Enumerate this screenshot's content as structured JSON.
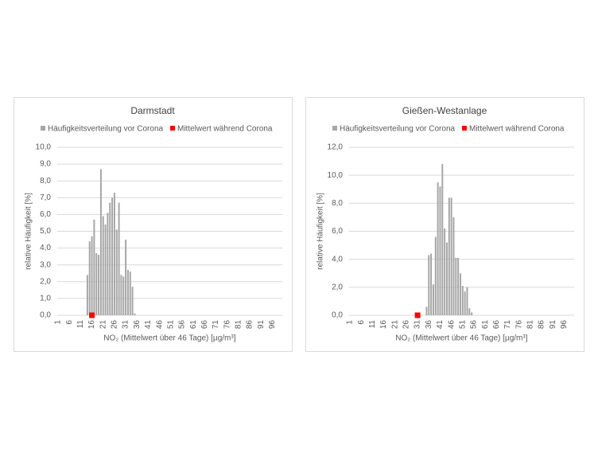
{
  "chart_data": [
    {
      "type": "bar",
      "title": "Darmstadt",
      "x_label": "NO₂ (Mittelwert über 46 Tage) [µg/m³]",
      "y_label": "relative Häufigkeit [%]",
      "categories": [
        "1",
        null,
        null,
        null,
        null,
        "6",
        null,
        null,
        null,
        null,
        "11",
        null,
        null,
        null,
        null,
        "16",
        null,
        null,
        null,
        null,
        "21",
        null,
        null,
        null,
        null,
        "26",
        null,
        null,
        null,
        null,
        "31",
        null,
        null,
        null,
        null,
        "36",
        null,
        null,
        null,
        null,
        "41",
        null,
        null,
        null,
        null,
        "46",
        null,
        null,
        null,
        null,
        "51",
        null,
        null,
        null,
        null,
        "56",
        null,
        null,
        null,
        null,
        "61",
        null,
        null,
        null,
        null,
        "66",
        null,
        null,
        null,
        null,
        "71",
        null,
        null,
        null,
        null,
        "76",
        null,
        null,
        null,
        null,
        "81",
        null,
        null,
        null,
        null,
        "86",
        null,
        null,
        null,
        null,
        "91",
        null,
        null,
        null,
        null,
        "96",
        null,
        null,
        null,
        null
      ],
      "series": [
        {
          "name": "Häufigkeitsverteilung vor Corona",
          "color": "#a6a6a6",
          "values": [
            0,
            0,
            0,
            0,
            0,
            0,
            0,
            0,
            0,
            0,
            0,
            0,
            0,
            2.4,
            4.4,
            4.7,
            5.7,
            3.7,
            3.6,
            8.7,
            5.9,
            5.4,
            6.1,
            6.7,
            7.0,
            7.3,
            5.1,
            6.7,
            2.4,
            2.3,
            4.5,
            2.7,
            2.6,
            1.7,
            0.1,
            0,
            0,
            0,
            0,
            0,
            0,
            0,
            0,
            0,
            0,
            0,
            0,
            0,
            0,
            0,
            0,
            0,
            0,
            0,
            0,
            0,
            0,
            0,
            0,
            0,
            0,
            0,
            0,
            0,
            0,
            0,
            0,
            0,
            0,
            0,
            0,
            0,
            0,
            0,
            0,
            0,
            0,
            0,
            0,
            0,
            0,
            0,
            0,
            0,
            0,
            0,
            0,
            0,
            0,
            0,
            0,
            0,
            0,
            0,
            0,
            0,
            0,
            0,
            0,
            0
          ]
        },
        {
          "name": "Mittelwert während Corona",
          "color": "#ff0000",
          "marker": "square",
          "values": [
            null,
            null,
            null,
            null,
            null,
            null,
            null,
            null,
            null,
            null,
            null,
            null,
            null,
            null,
            null,
            0,
            null,
            null,
            null,
            null,
            null,
            null,
            null,
            null,
            null,
            null,
            null,
            null,
            null,
            null,
            null,
            null,
            null,
            null,
            null,
            null,
            null,
            null,
            null,
            null,
            null,
            null,
            null,
            null,
            null,
            null,
            null,
            null,
            null,
            null,
            null,
            null,
            null,
            null,
            null,
            null,
            null,
            null,
            null,
            null,
            null,
            null,
            null,
            null,
            null,
            null,
            null,
            null,
            null,
            null,
            null,
            null,
            null,
            null,
            null,
            null,
            null,
            null,
            null,
            null,
            null,
            null,
            null,
            null,
            null,
            null,
            null,
            null,
            null,
            null,
            null,
            null,
            null,
            null,
            null,
            null,
            null,
            null,
            null,
            null
          ]
        }
      ],
      "ylim": [
        0,
        10
      ],
      "yticks": [
        {
          "value": 0,
          "label": "0,0"
        },
        {
          "value": 1,
          "label": "1,0"
        },
        {
          "value": 2,
          "label": "2,0"
        },
        {
          "value": 3,
          "label": "3,0"
        },
        {
          "value": 4,
          "label": "4,0"
        },
        {
          "value": 5,
          "label": "5,0"
        },
        {
          "value": 6,
          "label": "6,0"
        },
        {
          "value": 7,
          "label": "7,0"
        },
        {
          "value": 8,
          "label": "8,0"
        },
        {
          "value": 9,
          "label": "9,0"
        },
        {
          "value": 10,
          "label": "10,0"
        }
      ],
      "grid": true,
      "legend": "top"
    },
    {
      "type": "bar",
      "title": "Gießen-Westanlage",
      "x_label": "NO₂ (Mittelwert über 46 Tage) [µg/m³]",
      "y_label": "relative Häufigkeit [%]",
      "categories": [
        "1",
        null,
        null,
        null,
        null,
        "6",
        null,
        null,
        null,
        null,
        "11",
        null,
        null,
        null,
        null,
        "16",
        null,
        null,
        null,
        null,
        "21",
        null,
        null,
        null,
        null,
        "26",
        null,
        null,
        null,
        null,
        "31",
        null,
        null,
        null,
        null,
        "36",
        null,
        null,
        null,
        null,
        "41",
        null,
        null,
        null,
        null,
        "46",
        null,
        null,
        null,
        null,
        "51",
        null,
        null,
        null,
        null,
        "56",
        null,
        null,
        null,
        null,
        "61",
        null,
        null,
        null,
        null,
        "66",
        null,
        null,
        null,
        null,
        "71",
        null,
        null,
        null,
        null,
        "76",
        null,
        null,
        null,
        null,
        "81",
        null,
        null,
        null,
        null,
        "86",
        null,
        null,
        null,
        null,
        "91",
        null,
        null,
        null,
        null,
        "96",
        null,
        null,
        null,
        null
      ],
      "series": [
        {
          "name": "Häufigkeitsverteilung vor Corona",
          "color": "#a6a6a6",
          "values": [
            0,
            0,
            0,
            0,
            0,
            0,
            0,
            0,
            0,
            0,
            0,
            0,
            0,
            0,
            0,
            0,
            0,
            0,
            0,
            0,
            0,
            0,
            0,
            0,
            0,
            0,
            0,
            0,
            0,
            0,
            0,
            0,
            0,
            0,
            0.6,
            4.3,
            4.4,
            2.2,
            5.6,
            9.5,
            9.2,
            10.8,
            6.2,
            5.2,
            8.4,
            8.4,
            7.0,
            4.1,
            4.1,
            3.0,
            2.1,
            1.7,
            2.0,
            0.5,
            0.2,
            0,
            0,
            0,
            0,
            0,
            0,
            0,
            0,
            0,
            0,
            0,
            0,
            0,
            0,
            0,
            0,
            0,
            0,
            0,
            0,
            0,
            0,
            0,
            0,
            0,
            0,
            0,
            0,
            0,
            0,
            0,
            0,
            0,
            0,
            0,
            0,
            0,
            0,
            0,
            0,
            0,
            0,
            0,
            0,
            0
          ]
        },
        {
          "name": "Mittelwert während Corona",
          "color": "#ff0000",
          "marker": "square",
          "values": [
            null,
            null,
            null,
            null,
            null,
            null,
            null,
            null,
            null,
            null,
            null,
            null,
            null,
            null,
            null,
            null,
            null,
            null,
            null,
            null,
            null,
            null,
            null,
            null,
            null,
            null,
            null,
            null,
            null,
            null,
            0,
            null,
            null,
            null,
            null,
            null,
            null,
            null,
            null,
            null,
            null,
            null,
            null,
            null,
            null,
            null,
            null,
            null,
            null,
            null,
            null,
            null,
            null,
            null,
            null,
            null,
            null,
            null,
            null,
            null,
            null,
            null,
            null,
            null,
            null,
            null,
            null,
            null,
            null,
            null,
            null,
            null,
            null,
            null,
            null,
            null,
            null,
            null,
            null,
            null,
            null,
            null,
            null,
            null,
            null,
            null,
            null,
            null,
            null,
            null,
            null,
            null,
            null,
            null,
            null,
            null,
            null,
            null,
            null,
            null
          ]
        }
      ],
      "ylim": [
        0,
        12
      ],
      "yticks": [
        {
          "value": 0,
          "label": "0,0"
        },
        {
          "value": 2,
          "label": "2,0"
        },
        {
          "value": 4,
          "label": "4,0"
        },
        {
          "value": 6,
          "label": "6,0"
        },
        {
          "value": 8,
          "label": "8,0"
        },
        {
          "value": 10,
          "label": "10,0"
        },
        {
          "value": 12,
          "label": "12,0"
        }
      ],
      "grid": true,
      "legend": "top"
    }
  ]
}
